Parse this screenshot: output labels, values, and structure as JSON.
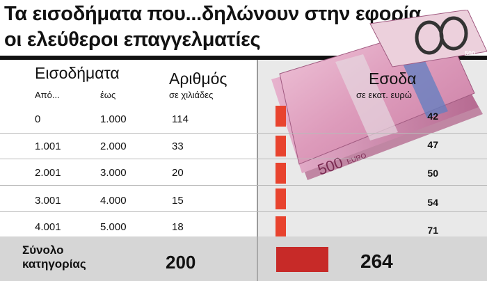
{
  "title": {
    "line1": "Τα εισοδήματα που...δηλώνουν στην εφορία",
    "line2": "οι ελεύθεροι επαγγελματίες"
  },
  "headers": {
    "income": "Εισοδήματα",
    "from": "Από...",
    "to": "έως",
    "count": "Αριθμός",
    "count_unit": "σε χιλιάδες",
    "revenue": "Εσοδα",
    "revenue_unit": "σε εκατ. ευρώ"
  },
  "rows": [
    {
      "from": "0",
      "to": "1.000",
      "count": "114",
      "revenue": "42"
    },
    {
      "from": "1.001",
      "to": "2.000",
      "count": "33",
      "revenue": "47"
    },
    {
      "from": "2.001",
      "to": "3.000",
      "count": "20",
      "revenue": "50"
    },
    {
      "from": "3.001",
      "to": "4.000",
      "count": "15",
      "revenue": "54"
    },
    {
      "from": "4.001",
      "to": "5.000",
      "count": "18",
      "revenue": "71"
    }
  ],
  "total": {
    "label_line1": "Σύνολο",
    "label_line2": "κατηγορίας",
    "count": "200",
    "revenue": "264"
  },
  "banknote_text": {
    "big": "500",
    "euro": "EURO",
    "corner": "500"
  },
  "colors": {
    "bar": "#e8432e",
    "total_bar": "#c72a28",
    "right_panel": "#e9e9e9",
    "total_band": "#d6d6d6"
  },
  "chart_data": {
    "type": "table",
    "title": "Τα εισοδήματα που...δηλώνουν στην εφορία οι ελεύθεροι επαγγελματίες",
    "columns": [
      "Από...",
      "έως",
      "Αριθμός (σε χιλιάδες)",
      "Εσοδα (σε εκατ. ευρώ)"
    ],
    "categories": [
      "0-1.000",
      "1.001-2.000",
      "2.001-3.000",
      "3.001-4.000",
      "4.001-5.000"
    ],
    "series": [
      {
        "name": "Αριθμός",
        "values": [
          114,
          33,
          20,
          15,
          18
        ]
      },
      {
        "name": "Εσοδα",
        "values": [
          42,
          47,
          50,
          54,
          71
        ]
      }
    ],
    "totals": {
      "Αριθμός": 200,
      "Εσοδα": 264
    }
  }
}
